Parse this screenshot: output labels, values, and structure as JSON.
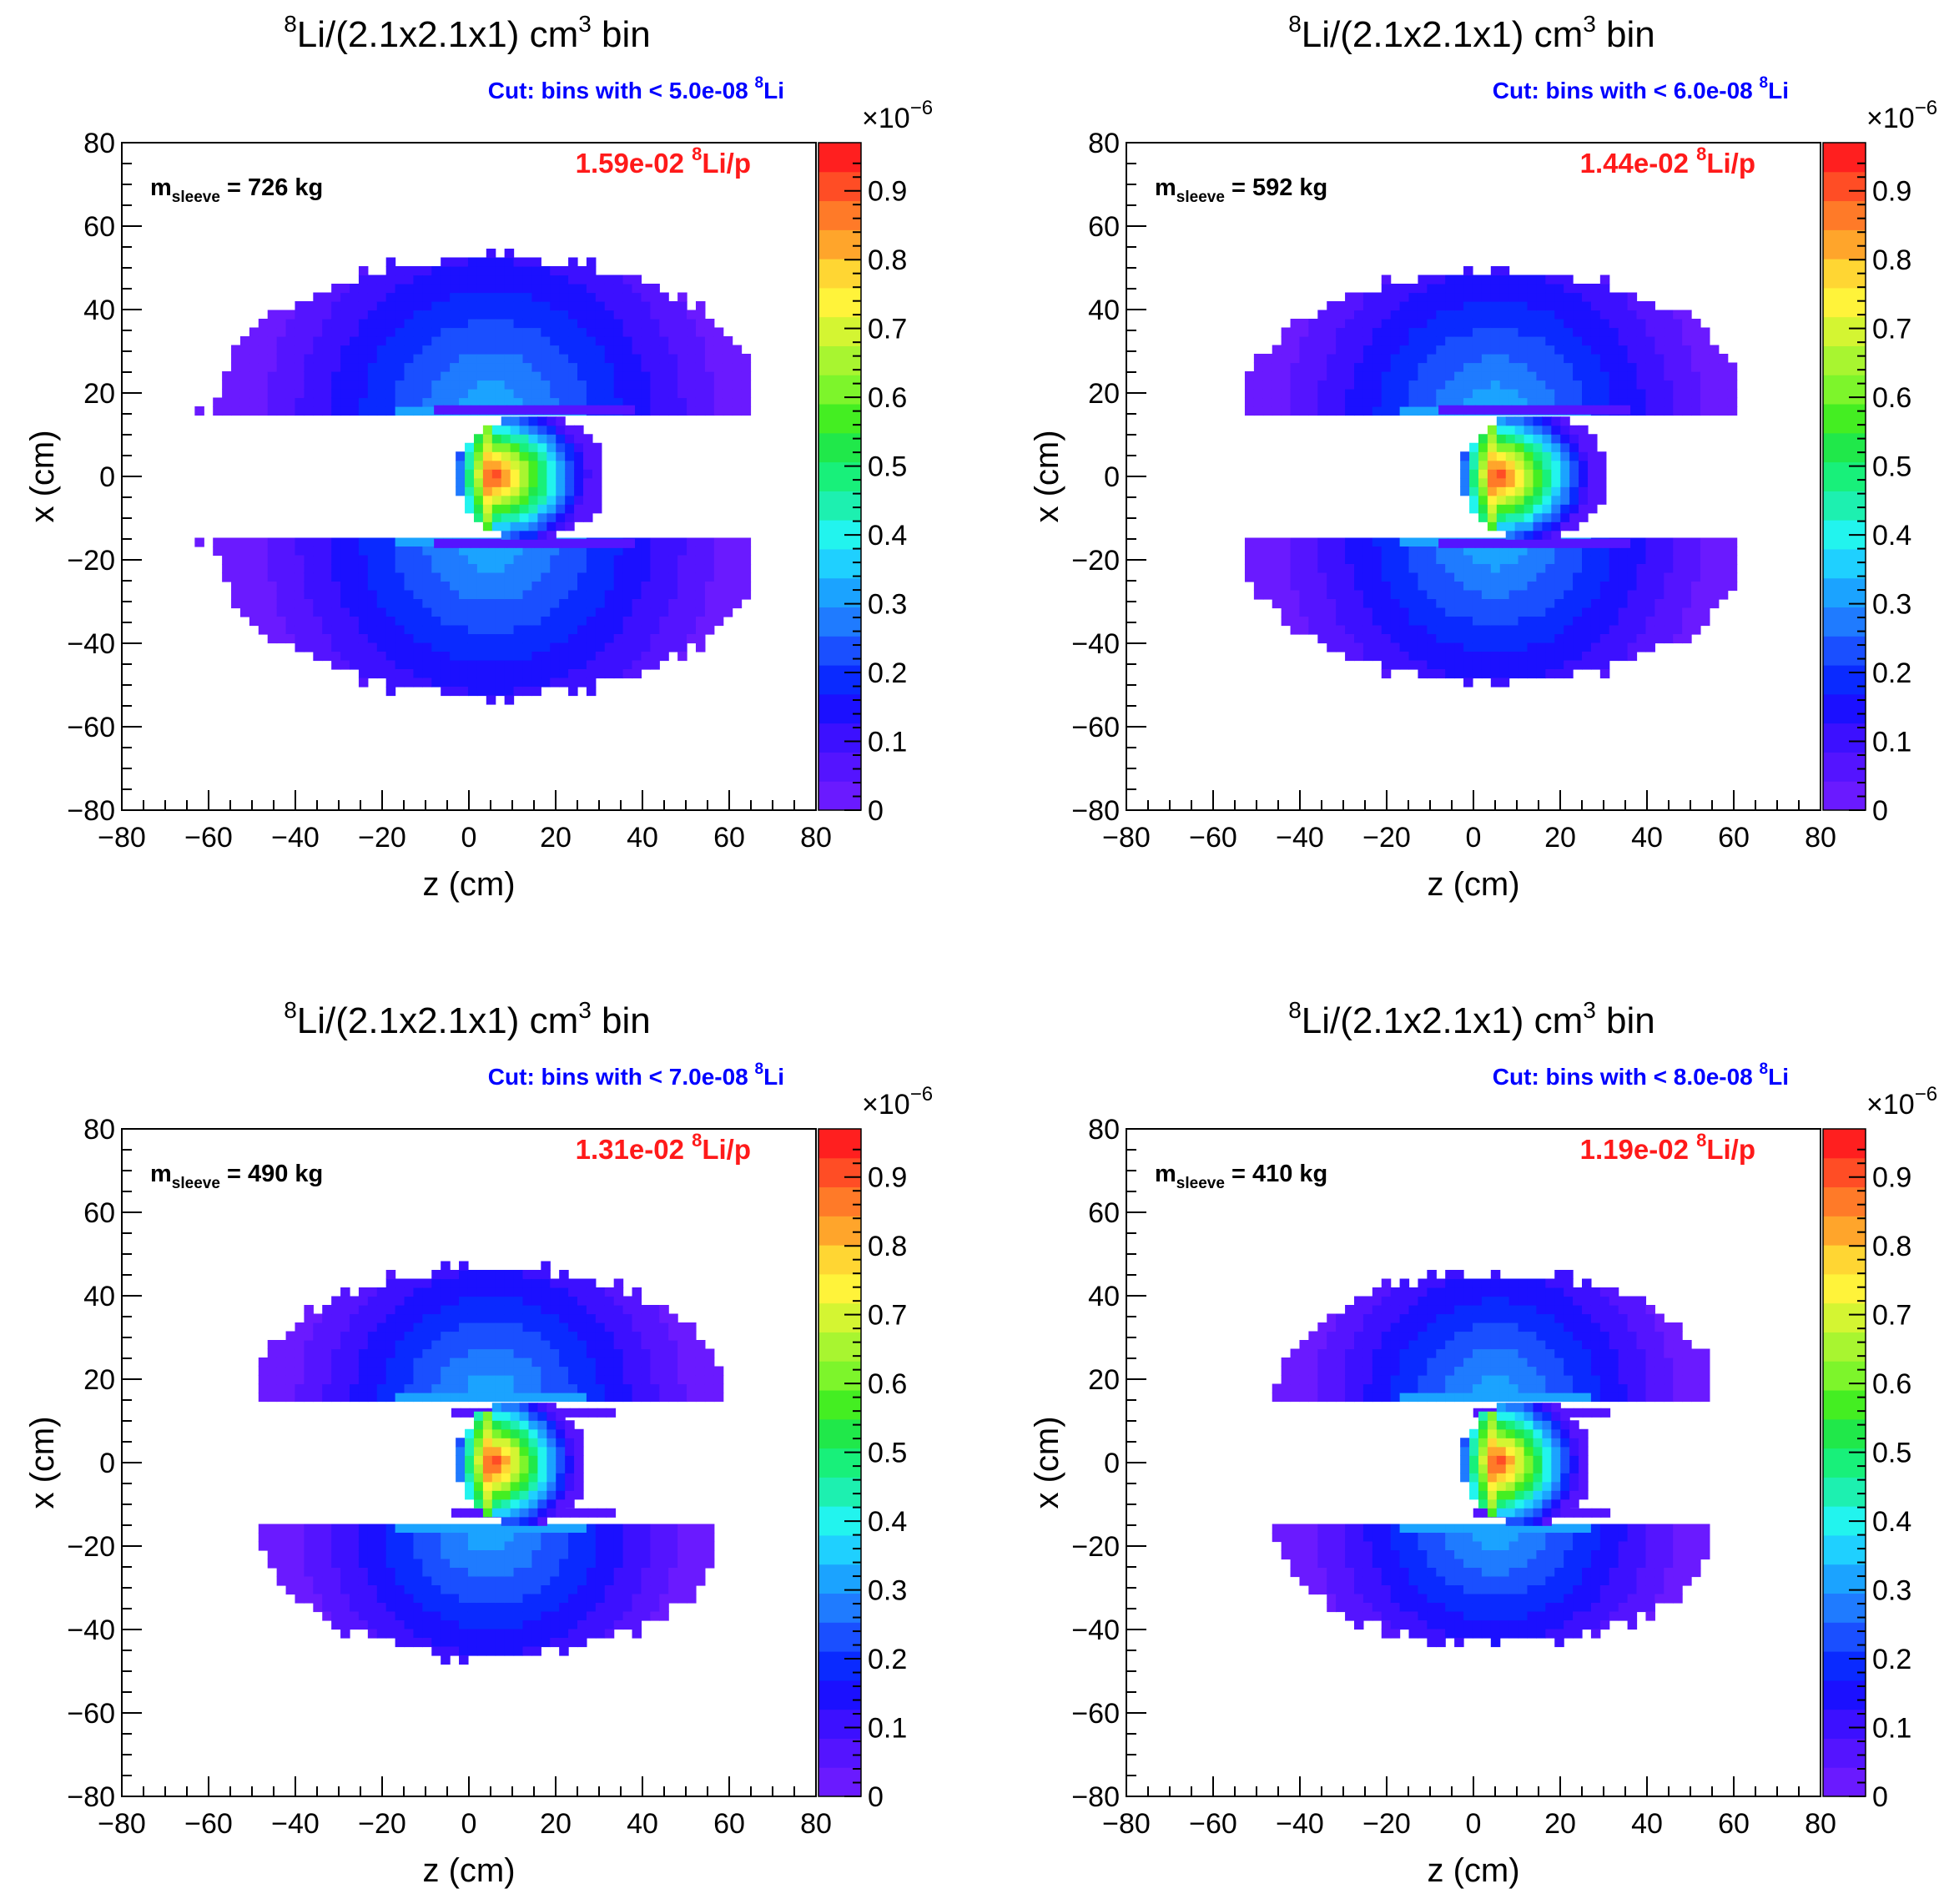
{
  "figure": {
    "colors": {
      "palette": [
        "#6a1aff",
        "#5414ff",
        "#3c10ff",
        "#1b10ff",
        "#0a2aff",
        "#1a4fff",
        "#1f7bff",
        "#1ba3ff",
        "#1fd0ff",
        "#22f4ee",
        "#1df0b0",
        "#18f07a",
        "#20e84a",
        "#44ee22",
        "#7df52b",
        "#a8f530",
        "#d4f532",
        "#fff33a",
        "#ffd633",
        "#ffa52b",
        "#ff7a28",
        "#ff4d25",
        "#ff1f1f"
      ],
      "cut_label": "#0000ff",
      "yield_label": "#ff1a1a"
    }
  },
  "chart_data": [
    {
      "type": "heatmap",
      "title": {
        "sup": "8",
        "base": "Li/(2.1x2.1x1) cm",
        "sup2": "3",
        "tail": " bin"
      },
      "cut_label": {
        "prefix": "Cut: bins with < 5.0e-08 ",
        "sup": "8",
        "suffix": "Li"
      },
      "mass_label": {
        "m": "m",
        "sub": "sleeve",
        "rest": " = 726 kg"
      },
      "yield_label": {
        "value": "1.59e-02 ",
        "sup": "8",
        "suffix": "Li/p"
      },
      "xlabel": "z (cm)",
      "ylabel": "x (cm)",
      "xlim": [
        -80,
        80
      ],
      "ylim": [
        -80,
        80
      ],
      "x_ticks": [
        "−80",
        "−60",
        "−40",
        "−20",
        "0",
        "20",
        "40",
        "60",
        "80"
      ],
      "y_ticks": [
        "−80",
        "−60",
        "−40",
        "−20",
        "0",
        "20",
        "40",
        "60",
        "80"
      ],
      "colorbar": {
        "min": 0,
        "max": 0.97,
        "exponent_label": "×10",
        "exponent_sup": "−6",
        "tick_values": [
          0,
          0.1,
          0.2,
          0.3,
          0.4,
          0.5,
          0.6,
          0.7,
          0.8,
          0.9
        ],
        "tick_labels": [
          "0",
          "0.1",
          "0.2",
          "0.3",
          "0.4",
          "0.5",
          "0.6",
          "0.7",
          "0.8",
          "0.9"
        ]
      },
      "distribution": {
        "upper_arc": {
          "z_min": -63,
          "z_max": 64,
          "x_inner": 15,
          "x_peak": 52
        },
        "lower_arc": {
          "z_min": -63,
          "z_max": 64,
          "x_inner": -15,
          "x_peak": -52
        },
        "core": {
          "z_min": -2,
          "z_max": 31,
          "x_half": 14,
          "hotspot_z": 5,
          "peak_value": 0.97
        },
        "stem": {
          "z_min": -7,
          "z_max": 39,
          "x_half": 18
        }
      }
    },
    {
      "type": "heatmap",
      "title": {
        "sup": "8",
        "base": "Li/(2.1x2.1x1) cm",
        "sup2": "3",
        "tail": " bin"
      },
      "cut_label": {
        "prefix": "Cut: bins with < 6.0e-08 ",
        "sup": "8",
        "suffix": "Li"
      },
      "mass_label": {
        "m": "m",
        "sub": "sleeve",
        "rest": " = 592 kg"
      },
      "yield_label": {
        "value": "1.44e-02 ",
        "sup": "8",
        "suffix": "Li/p"
      },
      "xlabel": "z (cm)",
      "ylabel": "x (cm)",
      "xlim": [
        -80,
        80
      ],
      "ylim": [
        -80,
        80
      ],
      "x_ticks": [
        "−80",
        "−60",
        "−40",
        "−20",
        "0",
        "20",
        "40",
        "60",
        "80"
      ],
      "y_ticks": [
        "−80",
        "−60",
        "−40",
        "−20",
        "0",
        "20",
        "40",
        "60",
        "80"
      ],
      "colorbar": {
        "min": 0,
        "max": 0.97,
        "exponent_label": "×10",
        "exponent_sup": "−6",
        "tick_values": [
          0,
          0.1,
          0.2,
          0.3,
          0.4,
          0.5,
          0.6,
          0.7,
          0.8,
          0.9
        ],
        "tick_labels": [
          "0",
          "0.1",
          "0.2",
          "0.3",
          "0.4",
          "0.5",
          "0.6",
          "0.7",
          "0.8",
          "0.9"
        ]
      },
      "distribution": {
        "upper_arc": {
          "z_min": -57,
          "z_max": 60,
          "x_inner": 15,
          "x_peak": 49
        },
        "lower_arc": {
          "z_min": -57,
          "z_max": 60,
          "x_inner": -15,
          "x_peak": -49
        },
        "core": {
          "z_min": -2,
          "z_max": 30,
          "x_half": 14,
          "hotspot_z": 5,
          "peak_value": 0.97
        },
        "stem": {
          "z_min": -7,
          "z_max": 36,
          "x_half": 18
        }
      }
    },
    {
      "type": "heatmap",
      "title": {
        "sup": "8",
        "base": "Li/(2.1x2.1x1) cm",
        "sup2": "3",
        "tail": " bin"
      },
      "cut_label": {
        "prefix": "Cut: bins with < 7.0e-08 ",
        "sup": "8",
        "suffix": "Li"
      },
      "mass_label": {
        "m": "m",
        "sub": "sleeve",
        "rest": " = 490 kg"
      },
      "yield_label": {
        "value": "1.31e-02 ",
        "sup": "8",
        "suffix": "Li/p"
      },
      "xlabel": "z (cm)",
      "ylabel": "x (cm)",
      "xlim": [
        -80,
        80
      ],
      "ylim": [
        -80,
        80
      ],
      "x_ticks": [
        "−80",
        "−60",
        "−40",
        "−20",
        "0",
        "20",
        "40",
        "60",
        "80"
      ],
      "y_ticks": [
        "−80",
        "−60",
        "−40",
        "−20",
        "0",
        "20",
        "40",
        "60",
        "80"
      ],
      "colorbar": {
        "min": 0,
        "max": 0.97,
        "exponent_label": "×10",
        "exponent_sup": "−6",
        "tick_values": [
          0,
          0.1,
          0.2,
          0.3,
          0.4,
          0.5,
          0.6,
          0.7,
          0.8,
          0.9
        ],
        "tick_labels": [
          "0",
          "0.1",
          "0.2",
          "0.3",
          "0.4",
          "0.5",
          "0.6",
          "0.7",
          "0.8",
          "0.9"
        ]
      },
      "distribution": {
        "upper_arc": {
          "z_min": -51,
          "z_max": 58,
          "x_inner": 15,
          "x_peak": 46
        },
        "lower_arc": {
          "z_min": -51,
          "z_max": 56,
          "x_inner": -15,
          "x_peak": -46
        },
        "core": {
          "z_min": -2,
          "z_max": 27,
          "x_half": 14,
          "hotspot_z": 5,
          "peak_value": 0.97
        },
        "stem": {
          "z_min": -3,
          "z_max": 34,
          "x_half": 14
        }
      }
    },
    {
      "type": "heatmap",
      "title": {
        "sup": "8",
        "base": "Li/(2.1x2.1x1) cm",
        "sup2": "3",
        "tail": " bin"
      },
      "cut_label": {
        "prefix": "Cut: bins with < 8.0e-08 ",
        "sup": "8",
        "suffix": "Li"
      },
      "mass_label": {
        "m": "m",
        "sub": "sleeve",
        "rest": " = 410 kg"
      },
      "yield_label": {
        "value": "1.19e-02 ",
        "sup": "8",
        "suffix": "Li/p"
      },
      "xlabel": "z (cm)",
      "ylabel": "x (cm)",
      "xlim": [
        -80,
        80
      ],
      "ylim": [
        -80,
        80
      ],
      "x_ticks": [
        "−80",
        "−60",
        "−40",
        "−20",
        "0",
        "20",
        "40",
        "60",
        "80"
      ],
      "y_ticks": [
        "−80",
        "−60",
        "−40",
        "−20",
        "0",
        "20",
        "40",
        "60",
        "80"
      ],
      "colorbar": {
        "min": 0,
        "max": 0.97,
        "exponent_label": "×10",
        "exponent_sup": "−6",
        "tick_values": [
          0,
          0.1,
          0.2,
          0.3,
          0.4,
          0.5,
          0.6,
          0.7,
          0.8,
          0.9
        ],
        "tick_labels": [
          "0",
          "0.1",
          "0.2",
          "0.3",
          "0.4",
          "0.5",
          "0.6",
          "0.7",
          "0.8",
          "0.9"
        ]
      },
      "distribution": {
        "upper_arc": {
          "z_min": -47,
          "z_max": 55,
          "x_inner": 15,
          "x_peak": 45
        },
        "lower_arc": {
          "z_min": -47,
          "z_max": 55,
          "x_inner": -15,
          "x_peak": -43
        },
        "core": {
          "z_min": -2,
          "z_max": 27,
          "x_half": 14,
          "hotspot_z": 5,
          "peak_value": 0.97
        },
        "stem": {
          "z_min": 1,
          "z_max": 32,
          "x_half": 14
        }
      }
    }
  ]
}
